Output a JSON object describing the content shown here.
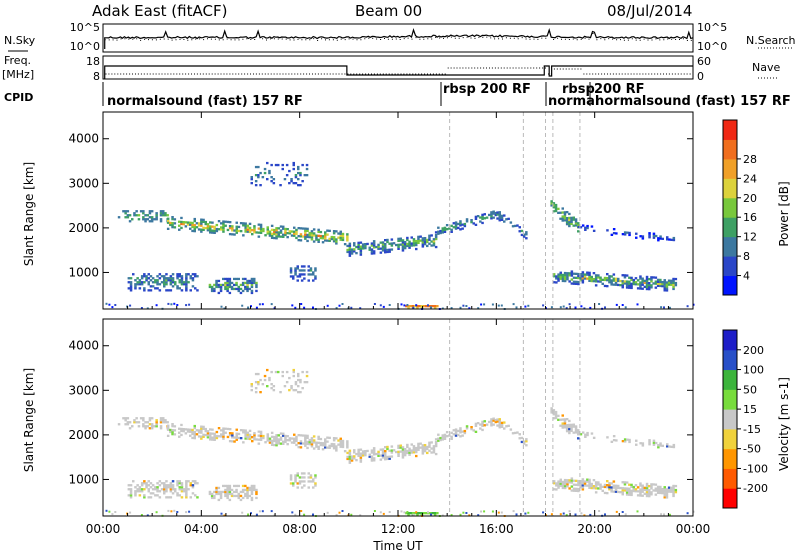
{
  "header": {
    "station": "Adak East (fitACF)",
    "beam": "Beam 00",
    "date": "08/Jul/2014"
  },
  "side_labels": {
    "nsky": "N.Sky",
    "nsearch": "N.Search",
    "freq": "Freq.",
    "freq_unit": "[MHz]",
    "nave": "Nave",
    "cpid": "CPID"
  },
  "noise_panel": {
    "left_ticks": [
      "10^5",
      "10^0"
    ],
    "right_ticks": [
      "10^5",
      "10^0"
    ]
  },
  "freq_panel": {
    "left_ticks": [
      "18",
      "8"
    ],
    "right_ticks": [
      "60",
      "0"
    ]
  },
  "cpid_labels": [
    {
      "text": "normalsound (fast) 157 RF",
      "hour": 0.7
    },
    {
      "text": "rbsp 200 RF",
      "hour": 14.05
    },
    {
      "text": "normal",
      "hour": 18.15
    },
    {
      "text": "rbsp",
      "hour": 18.9
    },
    {
      "text": "200 RF",
      "hour": 20.0
    },
    {
      "text": "normalsound (fast) 157 RF",
      "hour": 19.2
    }
  ],
  "colors": {
    "power": [
      "#0014ff",
      "#2a46c8",
      "#3c78a0",
      "#3ea064",
      "#78c83c",
      "#dcd23c",
      "#f0a028",
      "#f06e1e",
      "#f02814"
    ],
    "velocity": [
      "#ff0000",
      "#ff5a00",
      "#ff9600",
      "#f0d23c",
      "#c8c8c8",
      "#78dc3c",
      "#3cb43c",
      "#2850c8",
      "#1e1ec8"
    ]
  },
  "chart_data": [
    {
      "type": "heatmap",
      "name": "power",
      "xlabel": "",
      "ylabel": "Slant Range [km]",
      "xlim": [
        0,
        24
      ],
      "ylim": [
        180,
        4600
      ],
      "x_ticks": [
        "00:00",
        "04:00",
        "08:00",
        "12:00",
        "16:00",
        "20:00",
        "00:00"
      ],
      "y_ticks": [
        1000,
        2000,
        3000,
        4000
      ],
      "colorbar_label": "Power [dB]",
      "colorbar_ticks": [
        "4",
        "8",
        "12",
        "16",
        "20",
        "24",
        "28"
      ],
      "colorbar_range": [
        0,
        30
      ]
    },
    {
      "type": "heatmap",
      "name": "velocity",
      "xlabel": "Time UT",
      "ylabel": "Slant Range [km]",
      "xlim": [
        0,
        24
      ],
      "ylim": [
        180,
        4600
      ],
      "x_ticks": [
        "00:00",
        "04:00",
        "08:00",
        "12:00",
        "16:00",
        "20:00",
        "00:00"
      ],
      "y_ticks": [
        1000,
        2000,
        3000,
        4000
      ],
      "colorbar_label": "Velocity [m s-1]",
      "colorbar_ticks": [
        "-200",
        "-100",
        "-50",
        "-15",
        "15",
        "50",
        "100",
        "200"
      ],
      "colorbar_range": [
        -250,
        250
      ]
    }
  ]
}
